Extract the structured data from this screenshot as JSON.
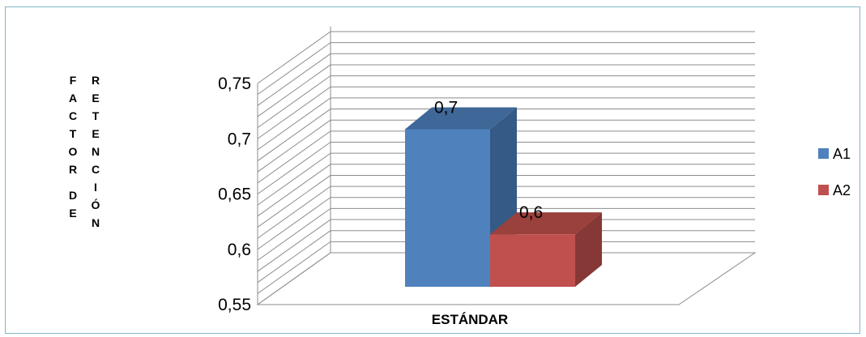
{
  "chart_data": {
    "type": "bar",
    "categories": [
      "ESTÁNDAR"
    ],
    "series": [
      {
        "name": "A1",
        "values": [
          0.7
        ],
        "label": "0,7",
        "color": "#4f81bd",
        "side": "#355a86",
        "top": "#3f6797"
      },
      {
        "name": "A2",
        "values": [
          0.6
        ],
        "label": "0,6",
        "color": "#c0504d",
        "side": "#863836",
        "top": "#9a403d"
      }
    ],
    "ylabel_lines": [
      "FACTOR DE",
      "RETENCIÓN"
    ],
    "ylim": [
      0.55,
      0.75
    ],
    "yticks": [
      0.55,
      0.6,
      0.65,
      0.7,
      0.75
    ],
    "ytick_labels": [
      "0,55",
      "0,6",
      "0,65",
      "0,7",
      "0,75"
    ],
    "grid": true,
    "legend_position": "right",
    "style": "3d-clustered-column"
  }
}
